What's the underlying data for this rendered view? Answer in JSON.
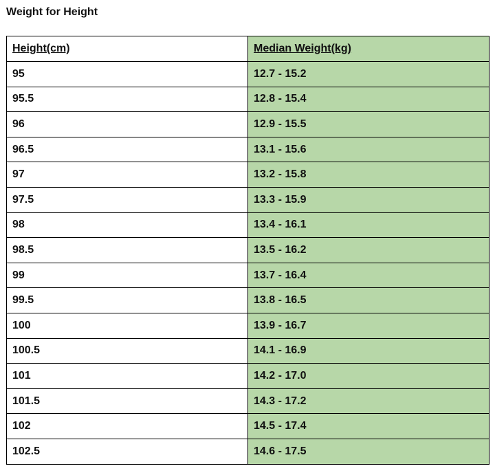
{
  "page": {
    "title": "Weight for Height"
  },
  "table": {
    "headers": [
      "Height(cm)",
      "Median Weight(kg)"
    ],
    "rows": [
      [
        "95",
        "12.7 - 15.2"
      ],
      [
        "95.5",
        "12.8 - 15.4"
      ],
      [
        "96",
        "12.9 - 15.5"
      ],
      [
        "96.5",
        "13.1 - 15.6"
      ],
      [
        "97",
        "13.2 - 15.8"
      ],
      [
        "97.5",
        "13.3 - 15.9"
      ],
      [
        "98",
        "13.4 - 16.1"
      ],
      [
        "98.5",
        "13.5 - 16.2"
      ],
      [
        "99",
        "13.7 - 16.4"
      ],
      [
        "99.5",
        "13.8 - 16.5"
      ],
      [
        "100",
        "13.9 - 16.7"
      ],
      [
        "100.5",
        "14.1 - 16.9"
      ],
      [
        "101",
        "14.2 - 17.0"
      ],
      [
        "101.5",
        "14.3 - 17.2"
      ],
      [
        "102",
        "14.5 - 17.4"
      ],
      [
        "102.5",
        "14.6 - 17.5"
      ]
    ]
  },
  "colors": {
    "weight_column_bg": "#b7d7a8",
    "border": "#000000"
  }
}
